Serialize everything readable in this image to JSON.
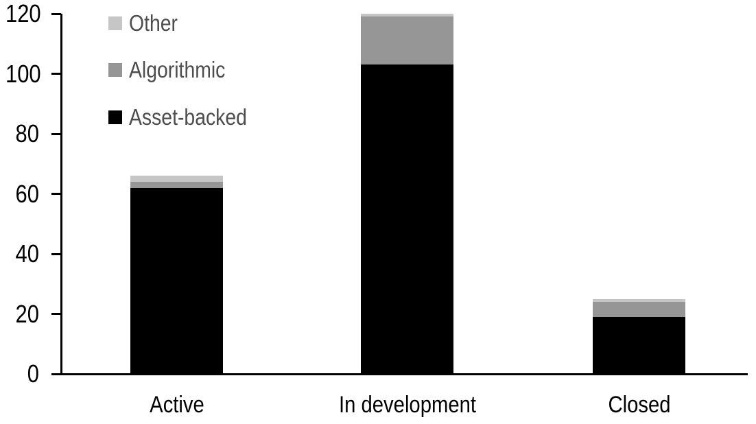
{
  "chart_data": {
    "type": "bar",
    "stacked": true,
    "title": "",
    "xlabel": "",
    "ylabel": "",
    "categories": [
      "Active",
      "In development",
      "Closed"
    ],
    "series": [
      {
        "name": "Asset-backed",
        "color": "#000000",
        "values": [
          62,
          103,
          19
        ]
      },
      {
        "name": "Algorithmic",
        "color": "#969696",
        "values": [
          2,
          16,
          5
        ]
      },
      {
        "name": "Other",
        "color": "#C6C6C6",
        "values": [
          2,
          1,
          1
        ]
      }
    ],
    "stack_totals": [
      66,
      120,
      25
    ],
    "ylim": [
      0,
      120
    ],
    "yticks": [
      0,
      20,
      40,
      60,
      80,
      100,
      120
    ],
    "grid": false,
    "axis_color": "#000000",
    "background": "#FFFFFF",
    "legend": {
      "position": "top-left",
      "order_top_to_bottom": [
        "Other",
        "Algorithmic",
        "Asset-backed"
      ],
      "text_color": "#4D4D4D"
    }
  }
}
